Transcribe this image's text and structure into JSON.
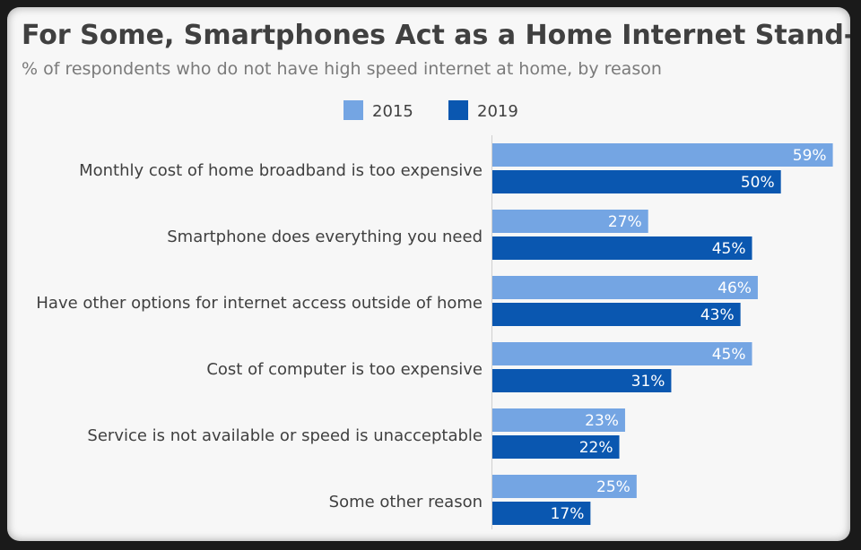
{
  "chart_data": {
    "type": "bar",
    "orientation": "horizontal",
    "title": "For Some, Smartphones Act as a Home Internet Stand-In",
    "subtitle": "% of respondents who do not have high speed internet at home, by reason",
    "categories": [
      "Monthly cost of home broadband is too expensive",
      "Smartphone does everything you need",
      "Have other options for internet access outside of home",
      "Cost of computer is too expensive",
      "Service is not available or speed is unacceptable",
      "Some other reason"
    ],
    "series": [
      {
        "name": "2015",
        "color": "#74a5e3",
        "values": [
          59,
          27,
          46,
          45,
          23,
          25
        ]
      },
      {
        "name": "2019",
        "color": "#0a57b0",
        "values": [
          50,
          45,
          43,
          31,
          22,
          17
        ]
      }
    ],
    "value_suffix": "%",
    "xlim": [
      0,
      60
    ],
    "grid": false,
    "legend": "top-center"
  }
}
